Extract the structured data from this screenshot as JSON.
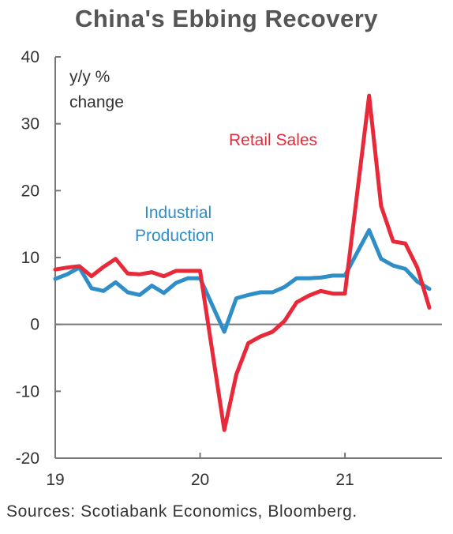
{
  "chart_data": {
    "type": "line",
    "title": "China's Ebbing Recovery",
    "ylabel_line1": "y/y  %",
    "ylabel_line2": "change",
    "ylim": [
      -20,
      40
    ],
    "yticks": [
      -20,
      -10,
      0,
      10,
      20,
      30,
      40
    ],
    "xlim": [
      2019.0,
      2021.67
    ],
    "xticks": [
      {
        "value": 2019,
        "label": "19"
      },
      {
        "value": 2020,
        "label": "20"
      },
      {
        "value": 2021,
        "label": "21"
      }
    ],
    "series": [
      {
        "name": "Retail Sales",
        "label_line1": "Retail Sales",
        "color": "#e8293a",
        "x": [
          2019.0,
          2019.083,
          2019.167,
          2019.25,
          2019.333,
          2019.417,
          2019.5,
          2019.583,
          2019.667,
          2019.75,
          2019.833,
          2019.917,
          2020.0,
          2020.167,
          2020.25,
          2020.333,
          2020.417,
          2020.5,
          2020.583,
          2020.667,
          2020.75,
          2020.833,
          2020.917,
          2021.0,
          2021.167,
          2021.25,
          2021.333,
          2021.417,
          2021.5,
          2021.583
        ],
        "y": [
          8.2,
          8.5,
          8.7,
          7.2,
          8.6,
          9.8,
          7.6,
          7.5,
          7.8,
          7.2,
          8.0,
          8.0,
          8.0,
          -15.8,
          -7.5,
          -2.8,
          -1.8,
          -1.1,
          0.5,
          3.3,
          4.3,
          5.0,
          4.6,
          4.6,
          34.2,
          17.7,
          12.4,
          12.1,
          8.5,
          2.5
        ]
      },
      {
        "name": "Industrial Production",
        "label_line1": "Industrial",
        "label_line2": "Production",
        "color": "#2f8dc8",
        "x": [
          2019.0,
          2019.083,
          2019.167,
          2019.25,
          2019.333,
          2019.417,
          2019.5,
          2019.583,
          2019.667,
          2019.75,
          2019.833,
          2019.917,
          2020.0,
          2020.167,
          2020.25,
          2020.333,
          2020.417,
          2020.5,
          2020.583,
          2020.667,
          2020.75,
          2020.833,
          2020.917,
          2021.0,
          2021.167,
          2021.25,
          2021.333,
          2021.417,
          2021.5,
          2021.583
        ],
        "y": [
          6.8,
          7.5,
          8.5,
          5.4,
          5.0,
          6.3,
          4.8,
          4.4,
          5.8,
          4.7,
          6.2,
          6.9,
          6.9,
          -1.1,
          3.9,
          4.4,
          4.8,
          4.8,
          5.6,
          6.9,
          6.9,
          7.0,
          7.3,
          7.3,
          14.1,
          9.8,
          8.8,
          8.3,
          6.4,
          5.3
        ]
      }
    ],
    "source": "Sources: Scotiabank Economics, Bloomberg.",
    "grid": false,
    "zero_line": true
  }
}
